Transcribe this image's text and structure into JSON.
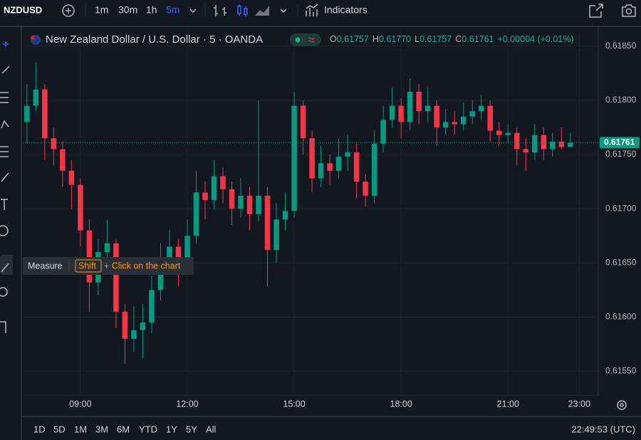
{
  "toolbar": {
    "symbol": "NZDUSD",
    "intervals": [
      "1m",
      "30m",
      "1h",
      "5m"
    ],
    "active_interval": "5m",
    "indicators": "Indicators"
  },
  "legend": {
    "title": "New Zealand Dollar / U.S. Dollar · 5 · OANDA",
    "ohlc": [
      {
        "key": "O",
        "value": "0.61757"
      },
      {
        "key": "H",
        "value": "0.61770"
      },
      {
        "key": "L",
        "value": "0.61757"
      },
      {
        "key": "C",
        "value": "0.61761"
      }
    ],
    "change": "+0.00004 (+0.01%)"
  },
  "tooltip": {
    "tool": "Measure",
    "key": "Shift",
    "hint": "+ Click on the chart"
  },
  "range_bar": {
    "ranges": [
      "1D",
      "5D",
      "1M",
      "3M",
      "6M",
      "YTD",
      "1Y",
      "5Y",
      "All"
    ],
    "clock": "22:49:53 (UTC)"
  },
  "chart_data": {
    "type": "candlestick",
    "up_color": "#089981",
    "down_color": "#f23645",
    "grid": true,
    "x": [
      450,
      465,
      480,
      495,
      510,
      525,
      540,
      555,
      570,
      585,
      600,
      615,
      630,
      645,
      660,
      675,
      690,
      705,
      720,
      735,
      750,
      765,
      780,
      795,
      810,
      825,
      840,
      855,
      870,
      885,
      900,
      915,
      930,
      945,
      960,
      975,
      990,
      1005,
      1020,
      1035,
      1050,
      1065,
      1080,
      1095,
      1110,
      1125,
      1140,
      1155,
      1170,
      1185,
      1200,
      1215,
      1230,
      1245,
      1260,
      1275,
      1290,
      1305,
      1320,
      1335,
      1350,
      1365
    ],
    "candles": [
      [
        0.6178,
        0.61815,
        0.6176,
        0.61795
      ],
      [
        0.61795,
        0.61835,
        0.6179,
        0.6181
      ],
      [
        0.6181,
        0.61815,
        0.61745,
        0.61765
      ],
      [
        0.61765,
        0.61775,
        0.6174,
        0.61755
      ],
      [
        0.61755,
        0.61762,
        0.6172,
        0.61735
      ],
      [
        0.61735,
        0.61745,
        0.617,
        0.61722
      ],
      [
        0.61722,
        0.61728,
        0.61665,
        0.6168
      ],
      [
        0.6168,
        0.6169,
        0.61605,
        0.61632
      ],
      [
        0.61632,
        0.61672,
        0.6162,
        0.6166
      ],
      [
        0.6166,
        0.6169,
        0.61645,
        0.61668
      ],
      [
        0.61668,
        0.61672,
        0.6159,
        0.61605
      ],
      [
        0.61605,
        0.61612,
        0.61557,
        0.6158
      ],
      [
        0.6158,
        0.6161,
        0.61568,
        0.61588
      ],
      [
        0.61588,
        0.61612,
        0.61562,
        0.61595
      ],
      [
        0.61595,
        0.61638,
        0.61585,
        0.61625
      ],
      [
        0.61625,
        0.61668,
        0.61615,
        0.61652
      ],
      [
        0.61652,
        0.6168,
        0.6164,
        0.61665
      ],
      [
        0.61665,
        0.61672,
        0.61628,
        0.61648
      ],
      [
        0.61648,
        0.6169,
        0.6164,
        0.61675
      ],
      [
        0.61675,
        0.61735,
        0.61668,
        0.61715
      ],
      [
        0.61715,
        0.61725,
        0.6169,
        0.61708
      ],
      [
        0.61708,
        0.61745,
        0.617,
        0.6173
      ],
      [
        0.6173,
        0.61738,
        0.61705,
        0.61718
      ],
      [
        0.61718,
        0.61725,
        0.61685,
        0.617
      ],
      [
        0.617,
        0.61728,
        0.61692,
        0.61712
      ],
      [
        0.61712,
        0.6172,
        0.6168,
        0.61695
      ],
      [
        0.61695,
        0.618,
        0.61688,
        0.61712
      ],
      [
        0.61712,
        0.6172,
        0.61628,
        0.61662
      ],
      [
        0.61662,
        0.61705,
        0.6165,
        0.6169
      ],
      [
        0.6169,
        0.61715,
        0.6168,
        0.61698
      ],
      [
        0.61698,
        0.61808,
        0.61692,
        0.61795
      ],
      [
        0.61795,
        0.618,
        0.6175,
        0.61765
      ],
      [
        0.61765,
        0.61772,
        0.61715,
        0.61728
      ],
      [
        0.61728,
        0.61758,
        0.6172,
        0.61742
      ],
      [
        0.61742,
        0.6175,
        0.61722,
        0.61735
      ],
      [
        0.61735,
        0.61765,
        0.61728,
        0.61748
      ],
      [
        0.61748,
        0.61768,
        0.61735,
        0.61752
      ],
      [
        0.61752,
        0.6176,
        0.6171,
        0.61725
      ],
      [
        0.61725,
        0.61732,
        0.61702,
        0.61712
      ],
      [
        0.61712,
        0.61772,
        0.61705,
        0.6176
      ],
      [
        0.6176,
        0.61795,
        0.61752,
        0.61782
      ],
      [
        0.61782,
        0.61812,
        0.61775,
        0.61795
      ],
      [
        0.61795,
        0.61802,
        0.61765,
        0.6178
      ],
      [
        0.6178,
        0.6182,
        0.61772,
        0.61808
      ],
      [
        0.61808,
        0.61815,
        0.61778,
        0.6179
      ],
      [
        0.6179,
        0.61812,
        0.6178,
        0.61795
      ],
      [
        0.61795,
        0.618,
        0.61758,
        0.61775
      ],
      [
        0.61775,
        0.61792,
        0.61768,
        0.6178
      ],
      [
        0.6178,
        0.6179,
        0.61768,
        0.61778
      ],
      [
        0.61778,
        0.61798,
        0.61772,
        0.61785
      ],
      [
        0.61785,
        0.618,
        0.61778,
        0.6179
      ],
      [
        0.6179,
        0.61805,
        0.61782,
        0.61795
      ],
      [
        0.61795,
        0.618,
        0.61762,
        0.61772
      ],
      [
        0.61772,
        0.6178,
        0.61758,
        0.61768
      ],
      [
        0.61768,
        0.61778,
        0.6176,
        0.6177
      ],
      [
        0.6177,
        0.61775,
        0.6174,
        0.61755
      ],
      [
        0.61755,
        0.61765,
        0.61735,
        0.61752
      ],
      [
        0.61752,
        0.61778,
        0.61745,
        0.61768
      ],
      [
        0.61768,
        0.61775,
        0.61745,
        0.61755
      ],
      [
        0.61755,
        0.6177,
        0.61748,
        0.61762
      ],
      [
        0.61762,
        0.61775,
        0.61755,
        0.61757
      ],
      [
        0.61757,
        0.6177,
        0.61757,
        0.61761
      ]
    ],
    "xlim": [
      443,
      1412
    ],
    "ylim": [
      0.61528,
      0.61865
    ],
    "xticks": [
      {
        "value": 540,
        "label": "09:00"
      },
      {
        "value": 720,
        "label": "12:00"
      },
      {
        "value": 900,
        "label": "15:00"
      },
      {
        "value": 1080,
        "label": "18:00"
      },
      {
        "value": 1260,
        "label": "21:00"
      },
      {
        "value": 1380,
        "label": "23:00"
      }
    ],
    "yticks": [
      {
        "value": 0.6155,
        "label": "0.61550"
      },
      {
        "value": 0.616,
        "label": "0.61600"
      },
      {
        "value": 0.6165,
        "label": "0.61650"
      },
      {
        "value": 0.617,
        "label": "0.61700"
      },
      {
        "value": 0.6175,
        "label": "0.61750"
      },
      {
        "value": 0.618,
        "label": "0.61800"
      },
      {
        "value": 0.6185,
        "label": "0.61850"
      }
    ],
    "last_price": {
      "value": 0.61761,
      "label": "0.61761"
    }
  }
}
